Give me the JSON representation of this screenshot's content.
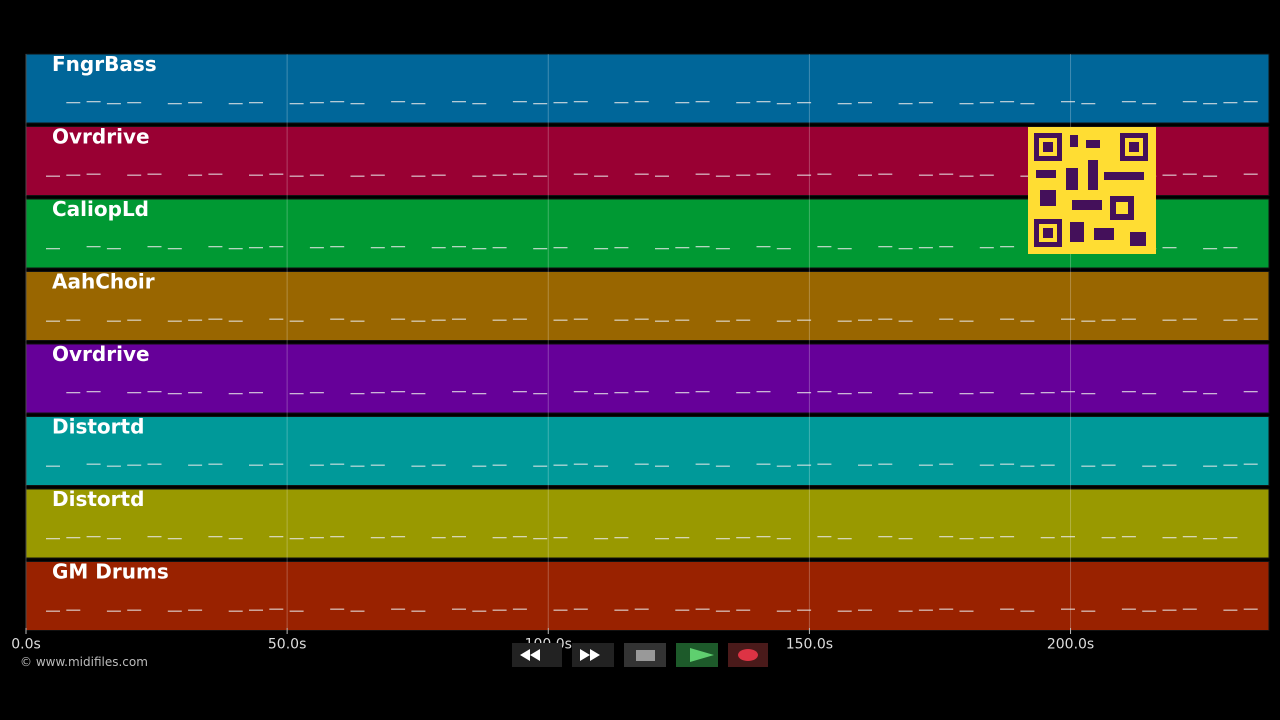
{
  "tracks": [
    {
      "name": "FngrBass",
      "color": "#006699"
    },
    {
      "name": "Ovrdrive",
      "color": "#990033"
    },
    {
      "name": "CaliopLd",
      "color": "#009933"
    },
    {
      "name": "AahChoir",
      "color": "#996600"
    },
    {
      "name": "Ovrdrive",
      "color": "#660099"
    },
    {
      "name": "Distortd",
      "color": "#009999"
    },
    {
      "name": "Distortd",
      "color": "#999900"
    },
    {
      "name": "GM Drums",
      "color": "#992200"
    }
  ],
  "timeline": {
    "xlim": [
      0,
      238
    ],
    "ticks": [
      {
        "value": 0,
        "label": "0.0s"
      },
      {
        "value": 50,
        "label": "50.0s"
      },
      {
        "value": 100,
        "label": "100.0s"
      },
      {
        "value": 150,
        "label": "150.0s"
      },
      {
        "value": 200,
        "label": "200.0s"
      }
    ]
  },
  "footer": {
    "copyright": "© www.midifiles.com"
  }
}
